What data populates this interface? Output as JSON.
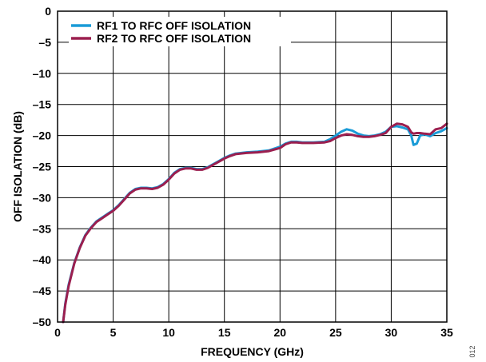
{
  "figure_id": "012",
  "chart_data": {
    "type": "line",
    "title": "",
    "xlabel": "FREQUENCY (GHz)",
    "ylabel": "OFF ISOLATION (dB)",
    "xlim": [
      0,
      35
    ],
    "ylim": [
      -50,
      0
    ],
    "xticks": [
      0,
      5,
      10,
      15,
      20,
      25,
      30,
      35
    ],
    "yticks": [
      0,
      -5,
      -10,
      -15,
      -20,
      -25,
      -30,
      -35,
      -40,
      -45,
      -50
    ],
    "xtick_labels": [
      "0",
      "5",
      "10",
      "15",
      "20",
      "25",
      "30",
      "35"
    ],
    "ytick_labels": [
      "0",
      "–5",
      "–10",
      "–15",
      "–20",
      "–25",
      "–30",
      "–35",
      "–40",
      "–45",
      "–50"
    ],
    "grid": true,
    "legend_position": "top-left",
    "series": [
      {
        "name": "RF1 TO RFC OFF ISOLATION",
        "color": "#1a9bd7",
        "x": [
          0.5,
          0.7,
          1.0,
          1.5,
          2.0,
          2.5,
          3.0,
          3.5,
          4.0,
          4.5,
          5.0,
          5.5,
          6.0,
          6.5,
          7.0,
          7.5,
          8.0,
          8.5,
          9.0,
          9.5,
          10.0,
          10.5,
          11.0,
          11.5,
          12.0,
          12.5,
          13.0,
          13.5,
          14.0,
          14.5,
          15.0,
          15.5,
          16.0,
          17.0,
          18.0,
          19.0,
          20.0,
          20.5,
          21.0,
          21.5,
          22.0,
          23.0,
          24.0,
          24.5,
          25.0,
          25.5,
          26.0,
          26.5,
          27.0,
          27.5,
          28.0,
          28.5,
          29.0,
          29.5,
          30.0,
          30.5,
          31.0,
          31.5,
          31.8,
          32.0,
          32.3,
          32.6,
          33.0,
          33.5,
          34.0,
          34.5,
          35.0
        ],
        "y": [
          -50.0,
          -47.0,
          -44.0,
          -40.5,
          -38.0,
          -36.0,
          -34.8,
          -33.8,
          -33.2,
          -32.6,
          -32.0,
          -31.2,
          -30.2,
          -29.2,
          -28.6,
          -28.4,
          -28.4,
          -28.5,
          -28.3,
          -27.8,
          -27.0,
          -26.0,
          -25.4,
          -25.2,
          -25.2,
          -25.4,
          -25.4,
          -25.1,
          -24.6,
          -24.1,
          -23.6,
          -23.2,
          -22.9,
          -22.7,
          -22.6,
          -22.4,
          -21.8,
          -21.3,
          -21.0,
          -21.0,
          -21.1,
          -21.1,
          -21.0,
          -20.6,
          -20.0,
          -19.4,
          -19.0,
          -19.2,
          -19.7,
          -20.0,
          -20.1,
          -20.0,
          -19.8,
          -19.4,
          -18.6,
          -18.5,
          -18.7,
          -19.0,
          -20.0,
          -21.5,
          -21.3,
          -20.0,
          -19.8,
          -20.1,
          -19.6,
          -19.3,
          -18.8
        ]
      },
      {
        "name": "RF2 TO RFC OFF ISOLATION",
        "color": "#9b1f4f",
        "x": [
          0.5,
          0.7,
          1.0,
          1.5,
          2.0,
          2.5,
          3.0,
          3.5,
          4.0,
          4.5,
          5.0,
          5.5,
          6.0,
          6.5,
          7.0,
          7.5,
          8.0,
          8.5,
          9.0,
          9.5,
          10.0,
          10.5,
          11.0,
          11.5,
          12.0,
          12.5,
          13.0,
          13.5,
          14.0,
          14.5,
          15.0,
          15.5,
          16.0,
          17.0,
          18.0,
          19.0,
          20.0,
          20.5,
          21.0,
          21.5,
          22.0,
          23.0,
          24.0,
          24.5,
          25.0,
          25.5,
          26.0,
          26.5,
          27.0,
          27.5,
          28.0,
          28.5,
          29.0,
          29.5,
          30.0,
          30.5,
          31.0,
          31.5,
          31.8,
          32.0,
          32.3,
          32.6,
          33.0,
          33.5,
          34.0,
          34.5,
          35.0
        ],
        "y": [
          -50.0,
          -47.2,
          -44.2,
          -40.6,
          -38.1,
          -36.1,
          -34.9,
          -33.9,
          -33.3,
          -32.7,
          -32.1,
          -31.3,
          -30.3,
          -29.3,
          -28.7,
          -28.5,
          -28.5,
          -28.6,
          -28.4,
          -27.9,
          -27.1,
          -26.1,
          -25.5,
          -25.3,
          -25.3,
          -25.5,
          -25.5,
          -25.2,
          -24.7,
          -24.2,
          -23.7,
          -23.3,
          -23.0,
          -22.8,
          -22.7,
          -22.5,
          -22.0,
          -21.4,
          -21.1,
          -21.1,
          -21.2,
          -21.2,
          -21.1,
          -20.9,
          -20.4,
          -20.0,
          -19.8,
          -19.9,
          -20.1,
          -20.2,
          -20.2,
          -20.1,
          -19.9,
          -19.6,
          -18.6,
          -18.1,
          -18.2,
          -18.6,
          -19.5,
          -19.7,
          -19.6,
          -19.6,
          -19.7,
          -19.8,
          -19.0,
          -18.8,
          -18.1
        ]
      }
    ]
  }
}
